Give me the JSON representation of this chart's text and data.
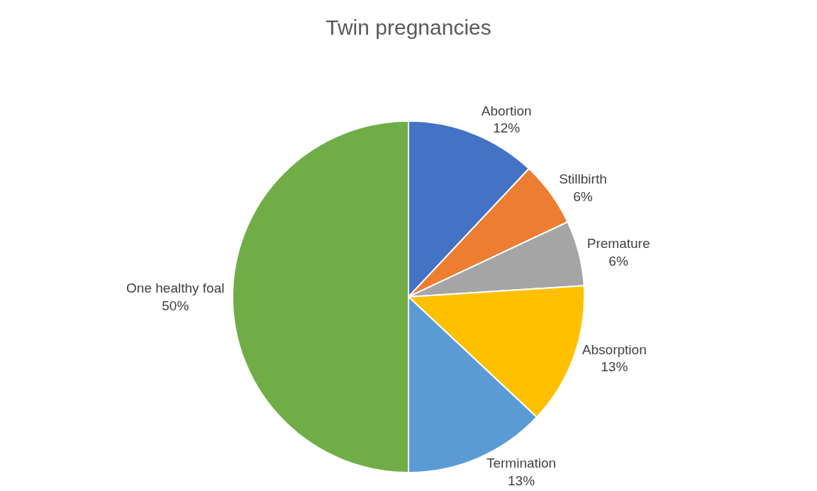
{
  "chart_data": {
    "type": "pie",
    "title": "Twin pregnancies",
    "categories": [
      "Abortion",
      "Stillbirth",
      "Premature",
      "Absorption",
      "Termination",
      "One healthy foal"
    ],
    "values": [
      12,
      6,
      6,
      13,
      13,
      50
    ],
    "colors": [
      "#4472c4",
      "#ed7d31",
      "#a5a5a5",
      "#ffc000",
      "#5b9bd5",
      "#70ad47"
    ],
    "value_labels": [
      "12%",
      "6%",
      "6%",
      "13%",
      "13%",
      "50%"
    ],
    "legend": false
  }
}
